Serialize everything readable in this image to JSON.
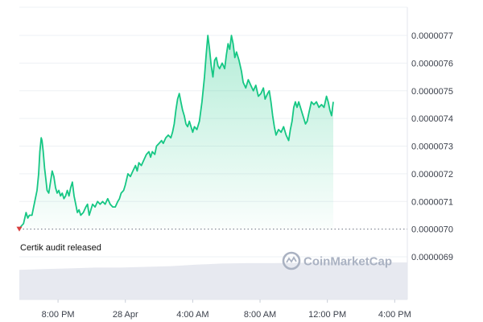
{
  "watermark": "CoinMarketCap",
  "chart_data": {
    "type": "area",
    "title": "",
    "xlabel": "",
    "ylabel": "",
    "ylim": [
      6.9e-06,
      7.7e-06
    ],
    "y_ticks": [
      {
        "value": 7.7e-06,
        "label": "0.0000077"
      },
      {
        "value": 7.6e-06,
        "label": "0.0000076"
      },
      {
        "value": 7.5e-06,
        "label": "0.0000075"
      },
      {
        "value": 7.4e-06,
        "label": "0.0000074"
      },
      {
        "value": 7.3e-06,
        "label": "0.0000073"
      },
      {
        "value": 7.2e-06,
        "label": "0.0000072"
      },
      {
        "value": 7.1e-06,
        "label": "0.0000071"
      },
      {
        "value": 7e-06,
        "label": "0.0000070"
      },
      {
        "value": 6.9e-06,
        "label": "0.0000069"
      }
    ],
    "x_range_hours": [
      0,
      23.05
    ],
    "x_ticks": [
      {
        "hour": 2.3,
        "label": "8:00 PM"
      },
      {
        "hour": 6.3,
        "label": "28 Apr"
      },
      {
        "hour": 10.3,
        "label": "4:00 AM"
      },
      {
        "hour": 14.3,
        "label": "8:00 AM"
      },
      {
        "hour": 18.3,
        "label": "12:00 PM"
      },
      {
        "hour": 22.3,
        "label": "4:00 PM"
      }
    ],
    "reference_line": {
      "value": 7e-06,
      "style": "dotted"
    },
    "annotation": {
      "hour": 0.0,
      "text": "Certik audit released"
    },
    "series": [
      {
        "color": "#16c784",
        "points": [
          [
            0.0,
            7e-06
          ],
          [
            0.1,
            7.01e-06
          ],
          [
            0.25,
            7.02e-06
          ],
          [
            0.4,
            7.06e-06
          ],
          [
            0.5,
            7.04e-06
          ],
          [
            0.6,
            7.05e-06
          ],
          [
            0.75,
            7.05e-06
          ],
          [
            0.85,
            7.08e-06
          ],
          [
            0.95,
            7.11e-06
          ],
          [
            1.05,
            7.14e-06
          ],
          [
            1.15,
            7.2e-06
          ],
          [
            1.22,
            7.28e-06
          ],
          [
            1.3,
            7.33e-06
          ],
          [
            1.35,
            7.32e-06
          ],
          [
            1.42,
            7.28e-06
          ],
          [
            1.5,
            7.22e-06
          ],
          [
            1.58,
            7.18e-06
          ],
          [
            1.65,
            7.14e-06
          ],
          [
            1.75,
            7.13e-06
          ],
          [
            1.85,
            7.17e-06
          ],
          [
            1.95,
            7.21e-06
          ],
          [
            2.05,
            7.19e-06
          ],
          [
            2.15,
            7.15e-06
          ],
          [
            2.25,
            7.13e-06
          ],
          [
            2.35,
            7.14e-06
          ],
          [
            2.45,
            7.12e-06
          ],
          [
            2.55,
            7.13e-06
          ],
          [
            2.65,
            7.11e-06
          ],
          [
            2.75,
            7.12e-06
          ],
          [
            2.85,
            7.14e-06
          ],
          [
            2.95,
            7.12e-06
          ],
          [
            3.05,
            7.15e-06
          ],
          [
            3.15,
            7.17e-06
          ],
          [
            3.25,
            7.12e-06
          ],
          [
            3.35,
            7.09e-06
          ],
          [
            3.45,
            7.06e-06
          ],
          [
            3.55,
            7.07e-06
          ],
          [
            3.65,
            7.05e-06
          ],
          [
            3.8,
            7.06e-06
          ],
          [
            3.95,
            7.08e-06
          ],
          [
            4.05,
            7.09e-06
          ],
          [
            4.15,
            7.05e-06
          ],
          [
            4.25,
            7.07e-06
          ],
          [
            4.35,
            7.09e-06
          ],
          [
            4.5,
            7.08e-06
          ],
          [
            4.65,
            7.1e-06
          ],
          [
            4.8,
            7.09e-06
          ],
          [
            4.95,
            7.1e-06
          ],
          [
            5.1,
            7.09e-06
          ],
          [
            5.25,
            7.11e-06
          ],
          [
            5.4,
            7.09e-06
          ],
          [
            5.55,
            7.08e-06
          ],
          [
            5.7,
            7.08e-06
          ],
          [
            5.85,
            7.1e-06
          ],
          [
            5.95,
            7.11e-06
          ],
          [
            6.05,
            7.13e-06
          ],
          [
            6.2,
            7.14e-06
          ],
          [
            6.3,
            7.16e-06
          ],
          [
            6.45,
            7.2e-06
          ],
          [
            6.6,
            7.19e-06
          ],
          [
            6.75,
            7.21e-06
          ],
          [
            6.9,
            7.23e-06
          ],
          [
            7.0,
            7.21e-06
          ],
          [
            7.1,
            7.24e-06
          ],
          [
            7.25,
            7.23e-06
          ],
          [
            7.4,
            7.25e-06
          ],
          [
            7.55,
            7.27e-06
          ],
          [
            7.7,
            7.28e-06
          ],
          [
            7.8,
            7.26e-06
          ],
          [
            7.9,
            7.28e-06
          ],
          [
            8.05,
            7.27e-06
          ],
          [
            8.15,
            7.3e-06
          ],
          [
            8.3,
            7.31e-06
          ],
          [
            8.45,
            7.32e-06
          ],
          [
            8.55,
            7.31e-06
          ],
          [
            8.7,
            7.33e-06
          ],
          [
            8.85,
            7.34e-06
          ],
          [
            9.0,
            7.33e-06
          ],
          [
            9.1,
            7.35e-06
          ],
          [
            9.2,
            7.38e-06
          ],
          [
            9.3,
            7.43e-06
          ],
          [
            9.4,
            7.47e-06
          ],
          [
            9.5,
            7.49e-06
          ],
          [
            9.6,
            7.46e-06
          ],
          [
            9.7,
            7.43e-06
          ],
          [
            9.8,
            7.41e-06
          ],
          [
            9.9,
            7.38e-06
          ],
          [
            10.0,
            7.37e-06
          ],
          [
            10.1,
            7.39e-06
          ],
          [
            10.2,
            7.37e-06
          ],
          [
            10.3,
            7.35e-06
          ],
          [
            10.4,
            7.37e-06
          ],
          [
            10.55,
            7.36e-06
          ],
          [
            10.7,
            7.39e-06
          ],
          [
            10.85,
            7.46e-06
          ],
          [
            11.0,
            7.55e-06
          ],
          [
            11.1,
            7.63e-06
          ],
          [
            11.2,
            7.7e-06
          ],
          [
            11.3,
            7.65e-06
          ],
          [
            11.4,
            7.59e-06
          ],
          [
            11.5,
            7.55e-06
          ],
          [
            11.6,
            7.61e-06
          ],
          [
            11.7,
            7.62e-06
          ],
          [
            11.8,
            7.59e-06
          ],
          [
            11.9,
            7.58e-06
          ],
          [
            12.05,
            7.6e-06
          ],
          [
            12.2,
            7.58e-06
          ],
          [
            12.3,
            7.63e-06
          ],
          [
            12.4,
            7.67e-06
          ],
          [
            12.5,
            7.65e-06
          ],
          [
            12.6,
            7.7e-06
          ],
          [
            12.7,
            7.67e-06
          ],
          [
            12.8,
            7.62e-06
          ],
          [
            12.9,
            7.64e-06
          ],
          [
            13.05,
            7.61e-06
          ],
          [
            13.2,
            7.57e-06
          ],
          [
            13.3,
            7.53e-06
          ],
          [
            13.45,
            7.51e-06
          ],
          [
            13.6,
            7.54e-06
          ],
          [
            13.75,
            7.52e-06
          ],
          [
            13.9,
            7.5e-06
          ],
          [
            14.05,
            7.52e-06
          ],
          [
            14.2,
            7.48e-06
          ],
          [
            14.35,
            7.49e-06
          ],
          [
            14.5,
            7.51e-06
          ],
          [
            14.6,
            7.47e-06
          ],
          [
            14.75,
            7.49e-06
          ],
          [
            14.85,
            7.5e-06
          ],
          [
            14.95,
            7.46e-06
          ],
          [
            15.05,
            7.41e-06
          ],
          [
            15.15,
            7.37e-06
          ],
          [
            15.25,
            7.34e-06
          ],
          [
            15.4,
            7.36e-06
          ],
          [
            15.55,
            7.35e-06
          ],
          [
            15.7,
            7.37e-06
          ],
          [
            15.85,
            7.34e-06
          ],
          [
            16.0,
            7.32e-06
          ],
          [
            16.1,
            7.36e-06
          ],
          [
            16.2,
            7.39e-06
          ],
          [
            16.3,
            7.44e-06
          ],
          [
            16.4,
            7.46e-06
          ],
          [
            16.5,
            7.44e-06
          ],
          [
            16.6,
            7.46e-06
          ],
          [
            16.7,
            7.44e-06
          ],
          [
            16.8,
            7.42e-06
          ],
          [
            16.9,
            7.4e-06
          ],
          [
            17.0,
            7.38e-06
          ],
          [
            17.1,
            7.39e-06
          ],
          [
            17.2,
            7.42e-06
          ],
          [
            17.35,
            7.46e-06
          ],
          [
            17.5,
            7.45e-06
          ],
          [
            17.65,
            7.46e-06
          ],
          [
            17.8,
            7.44e-06
          ],
          [
            17.95,
            7.45e-06
          ],
          [
            18.1,
            7.44e-06
          ],
          [
            18.25,
            7.48e-06
          ],
          [
            18.35,
            7.46e-06
          ],
          [
            18.45,
            7.43e-06
          ],
          [
            18.55,
            7.41e-06
          ],
          [
            18.65,
            7.46e-06
          ]
        ]
      }
    ],
    "volume": {
      "color": "#e4e7ee",
      "fraction_of_max": [
        [
          0.0,
          0.8
        ],
        [
          1.5,
          0.82
        ],
        [
          3.0,
          0.84
        ],
        [
          4.5,
          0.86
        ],
        [
          6.0,
          0.86
        ],
        [
          7.5,
          0.88
        ],
        [
          9.0,
          0.9
        ],
        [
          10.5,
          0.94
        ],
        [
          12.0,
          0.97
        ],
        [
          13.5,
          0.98
        ],
        [
          15.0,
          0.98
        ],
        [
          16.5,
          0.99
        ],
        [
          18.0,
          1.0
        ],
        [
          23.05,
          1.0
        ]
      ]
    }
  }
}
